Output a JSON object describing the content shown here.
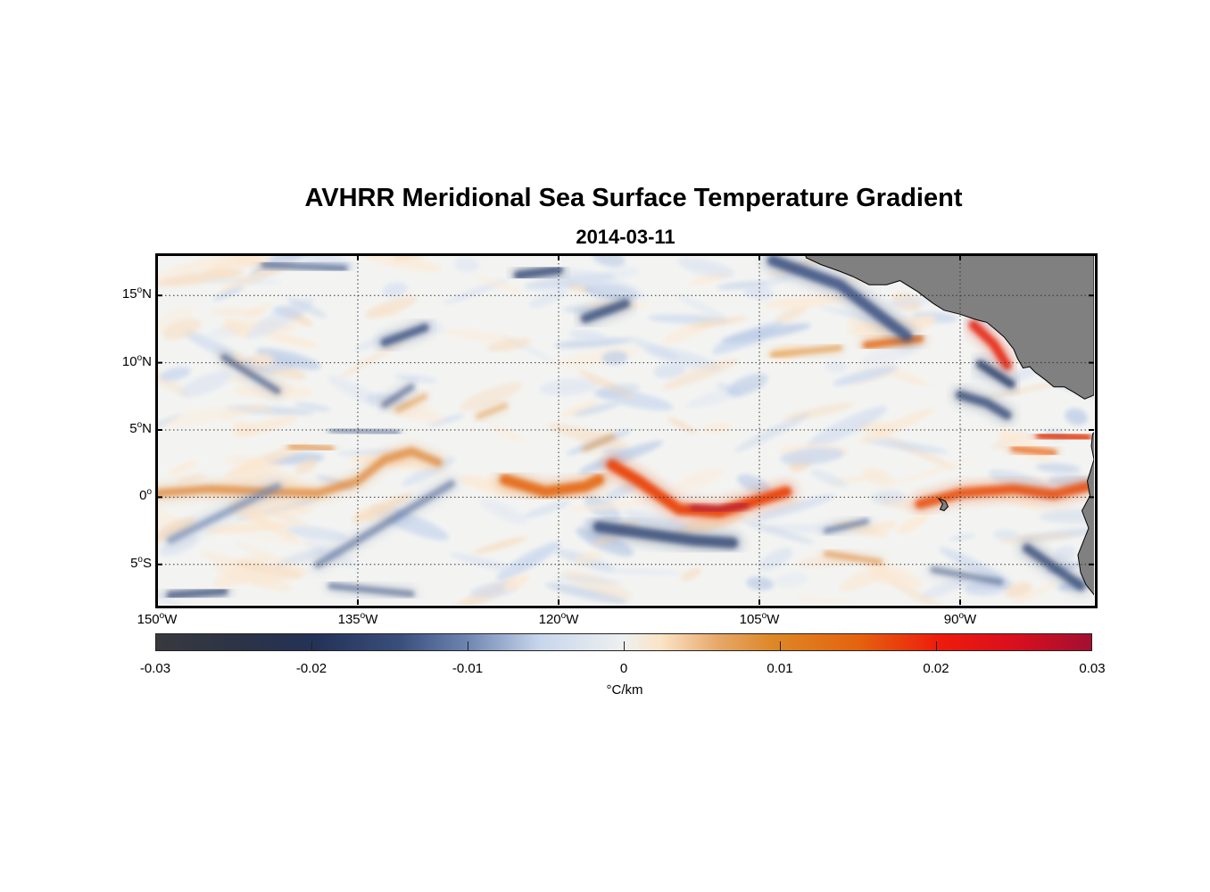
{
  "title": "AVHRR Meridional Sea Surface Temperature Gradient",
  "subtitle": "2014-03-11",
  "map": {
    "extent": {
      "lon_min": -150,
      "lon_max": -80,
      "lat_min": -8,
      "lat_max": 18
    },
    "lat_labels": [
      {
        "lat": 15,
        "num": "15",
        "hem": "N"
      },
      {
        "lat": 10,
        "num": "10",
        "hem": "N"
      },
      {
        "lat": 5,
        "num": "5",
        "hem": "N"
      },
      {
        "lat": 0,
        "num": "0",
        "hem": ""
      },
      {
        "lat": -5,
        "num": "5",
        "hem": "S"
      }
    ],
    "lon_labels": [
      {
        "lon": -150,
        "num": "150",
        "hem": "W"
      },
      {
        "lon": -135,
        "num": "135",
        "hem": "W"
      },
      {
        "lon": -120,
        "num": "120",
        "hem": "W"
      },
      {
        "lon": -105,
        "num": "105",
        "hem": "W"
      },
      {
        "lon": -90,
        "num": "90",
        "hem": "W"
      }
    ],
    "land_color": "#808080",
    "grid": "dotted"
  },
  "colorbar": {
    "min": -0.03,
    "max": 0.03,
    "tick_values": [
      -0.03,
      -0.02,
      -0.01,
      0,
      0.01,
      0.02,
      0.03
    ],
    "tick_labels": [
      "-0.03",
      "-0.02",
      "-0.01",
      "0",
      "0.01",
      "0.02",
      "0.03"
    ],
    "unit": "°C/km"
  },
  "features": [
    {
      "kind": "warm",
      "pts": [
        [
          -150,
          0.3
        ],
        [
          -146,
          0.6
        ],
        [
          -142,
          0.4
        ],
        [
          -138,
          0.3
        ],
        [
          -135,
          1.2
        ],
        [
          -133,
          2.8
        ],
        [
          -131,
          3.4
        ],
        [
          -129,
          2.6
        ]
      ],
      "w": 9,
      "c": "#e08a3e",
      "o": 0.75
    },
    {
      "kind": "warm",
      "pts": [
        [
          -124,
          1.3
        ],
        [
          -121,
          0.4
        ],
        [
          -118,
          0.8
        ],
        [
          -117,
          1.3
        ]
      ],
      "w": 12,
      "c": "#e46a14",
      "o": 0.9
    },
    {
      "kind": "warm",
      "pts": [
        [
          -116,
          2.4
        ],
        [
          -114,
          1.2
        ],
        [
          -111,
          -0.9
        ],
        [
          -108,
          -1.1
        ],
        [
          -105,
          -0.2
        ],
        [
          -103,
          0.4
        ]
      ],
      "w": 12,
      "c": "#e9470e",
      "o": 0.95
    },
    {
      "kind": "peak",
      "pts": [
        [
          -110,
          -0.8
        ],
        [
          -108,
          -0.9
        ],
        [
          -106,
          -0.6
        ]
      ],
      "w": 5,
      "c": "#b21d3c",
      "o": 0.9
    },
    {
      "kind": "warm",
      "pts": [
        [
          -93,
          -0.5
        ],
        [
          -90,
          0.3
        ],
        [
          -86,
          0.6
        ],
        [
          -83,
          0.2
        ],
        [
          -80.5,
          0.8
        ]
      ],
      "w": 11,
      "c": "#e8500f",
      "o": 0.85
    },
    {
      "kind": "warm",
      "pts": [
        [
          -97,
          11.3
        ],
        [
          -93,
          11.8
        ]
      ],
      "w": 8,
      "c": "#e26b14",
      "o": 0.85
    },
    {
      "kind": "warm",
      "pts": [
        [
          -104,
          10.6
        ],
        [
          -99,
          11.1
        ]
      ],
      "w": 6,
      "c": "#e39745",
      "o": 0.7
    },
    {
      "kind": "warm",
      "pts": [
        [
          -89,
          12.8
        ],
        [
          -87.5,
          11.4
        ],
        [
          -86.5,
          9.8
        ]
      ],
      "w": 10,
      "c": "#e6210f",
      "o": 0.85
    },
    {
      "kind": "warm",
      "pts": [
        [
          -84,
          4.6
        ],
        [
          -80.5,
          4.4
        ]
      ],
      "w": 10,
      "c": "#e23a10",
      "o": 0.8
    },
    {
      "kind": "warm",
      "pts": [
        [
          -86,
          3.6
        ],
        [
          -83,
          3.3
        ]
      ],
      "w": 7,
      "c": "#e86010",
      "o": 0.7
    },
    {
      "kind": "warm",
      "pts": [
        [
          -100,
          -4.2
        ],
        [
          -96,
          -4.8
        ]
      ],
      "w": 6,
      "c": "#e08a3e",
      "o": 0.6
    },
    {
      "kind": "warm",
      "pts": [
        [
          -140,
          3.8
        ],
        [
          -137,
          3.6
        ]
      ],
      "w": 7,
      "c": "#e08a3e",
      "o": 0.6
    },
    {
      "kind": "warm",
      "pts": [
        [
          -132,
          6.5
        ],
        [
          -130,
          7.5
        ]
      ],
      "w": 6,
      "c": "#e39745",
      "o": 0.55
    },
    {
      "kind": "warm",
      "pts": [
        [
          -126,
          6.0
        ],
        [
          -124,
          6.8
        ]
      ],
      "w": 6,
      "c": "#e39745",
      "o": 0.5
    },
    {
      "kind": "warm",
      "pts": [
        [
          -118,
          3.6
        ],
        [
          -116,
          4.5
        ]
      ],
      "w": 6,
      "c": "#e39745",
      "o": 0.5
    },
    {
      "kind": "cold",
      "pts": [
        [
          -123,
          16.5
        ],
        [
          -120,
          16.9
        ]
      ],
      "w": 10,
      "c": "#3b4f7a",
      "o": 0.8
    },
    {
      "kind": "cold",
      "pts": [
        [
          -112,
          17.2
        ],
        [
          -108,
          17.2
        ]
      ],
      "w": 8,
      "c": "#4a5f8c",
      "o": 0.55
    },
    {
      "kind": "cold",
      "pts": [
        [
          -104,
          17.6
        ],
        [
          -99,
          15.8
        ],
        [
          -96,
          13.5
        ],
        [
          -94,
          12
        ]
      ],
      "w": 12,
      "c": "#3e5382",
      "o": 0.85
    },
    {
      "kind": "cold",
      "pts": [
        [
          -118,
          13.3
        ],
        [
          -115,
          14.4
        ]
      ],
      "w": 10,
      "c": "#3b4f7a",
      "o": 0.8
    },
    {
      "kind": "cold",
      "pts": [
        [
          -133,
          11.5
        ],
        [
          -130,
          12.6
        ]
      ],
      "w": 9,
      "c": "#3e5382",
      "o": 0.8
    },
    {
      "kind": "cold",
      "pts": [
        [
          -145,
          10.4
        ],
        [
          -141,
          7.9
        ]
      ],
      "w": 7,
      "c": "#4a5f8c",
      "o": 0.7
    },
    {
      "kind": "cold",
      "pts": [
        [
          -133,
          6.9
        ],
        [
          -131,
          8.2
        ]
      ],
      "w": 7,
      "c": "#4a5f8c",
      "o": 0.6
    },
    {
      "kind": "cold",
      "pts": [
        [
          -137,
          5.0
        ],
        [
          -132,
          4.8
        ]
      ],
      "w": 5,
      "c": "#4a5f8c",
      "o": 0.6
    },
    {
      "kind": "cold",
      "pts": [
        [
          -149,
          -3.2
        ],
        [
          -141,
          0.8
        ]
      ],
      "w": 8,
      "c": "#6c83b0",
      "o": 0.6
    },
    {
      "kind": "cold",
      "pts": [
        [
          -138,
          -5.0
        ],
        [
          -128,
          1.0
        ]
      ],
      "w": 8,
      "c": "#5a6f9c",
      "o": 0.6
    },
    {
      "kind": "cold",
      "pts": [
        [
          -117,
          -2.2
        ],
        [
          -110,
          -3.2
        ],
        [
          -107,
          -3.4
        ]
      ],
      "w": 12,
      "c": "#3b4f7a",
      "o": 0.85
    },
    {
      "kind": "cold",
      "pts": [
        [
          -100,
          -2.5
        ],
        [
          -97,
          -1.8
        ]
      ],
      "w": 6,
      "c": "#4a5f8c",
      "o": 0.6
    },
    {
      "kind": "cold",
      "pts": [
        [
          -90,
          7.6
        ],
        [
          -88,
          7.0
        ],
        [
          -86.5,
          6.1
        ]
      ],
      "w": 10,
      "c": "#3b4f7a",
      "o": 0.8
    },
    {
      "kind": "cold",
      "pts": [
        [
          -88.5,
          9.9
        ],
        [
          -86.2,
          8.4
        ]
      ],
      "w": 9,
      "c": "#33456d",
      "o": 0.85
    },
    {
      "kind": "cold",
      "pts": [
        [
          -149,
          -7.3
        ],
        [
          -145,
          -7.0
        ]
      ],
      "w": 9,
      "c": "#3b4f7a",
      "o": 0.7
    },
    {
      "kind": "cold",
      "pts": [
        [
          -137,
          -6.6
        ],
        [
          -131,
          -7.2
        ]
      ],
      "w": 7,
      "c": "#4a5f8c",
      "o": 0.6
    },
    {
      "kind": "cold",
      "pts": [
        [
          -85,
          -3.8
        ],
        [
          -81,
          -6.6
        ]
      ],
      "w": 10,
      "c": "#3b4f7a",
      "o": 0.8
    },
    {
      "kind": "cold",
      "pts": [
        [
          -92,
          -5.4
        ],
        [
          -87,
          -6.3
        ]
      ],
      "w": 7,
      "c": "#4a5f8c",
      "o": 0.55
    },
    {
      "kind": "cold",
      "pts": [
        [
          -142,
          17.3
        ],
        [
          -136,
          17.0
        ]
      ],
      "w": 7,
      "c": "#4a5f8c",
      "o": 0.65
    }
  ]
}
